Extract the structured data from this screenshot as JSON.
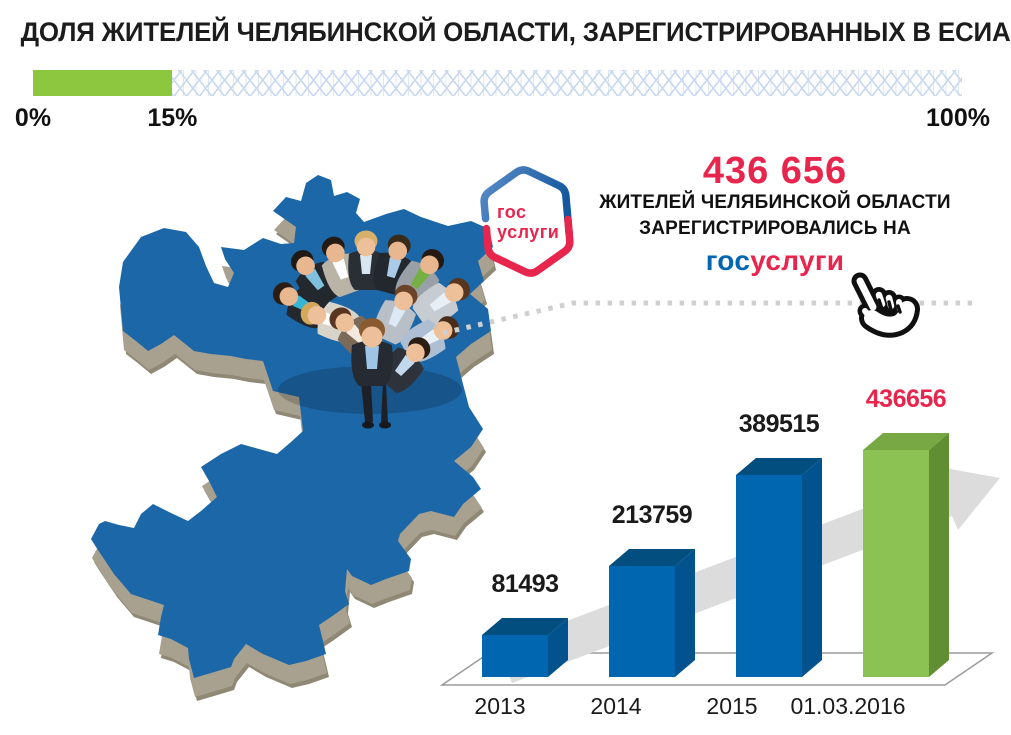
{
  "title": "ДОЛЯ ЖИТЕЛЕЙ ЧЕЛЯБИНСКОЙ ОБЛАСТИ, ЗАРЕГИСТРИРОВАННЫХ В ЕСИА",
  "progress": {
    "percent": 15,
    "min_label": "0%",
    "value_label": "15%",
    "max_label": "100%",
    "fill_color": "#8DC63F",
    "pattern_color": "#C9D8EE"
  },
  "logo": {
    "line1": "гос",
    "line2": "услуги",
    "text_color": "#E8254D",
    "border_top_color": "#2E6CB4",
    "border_bottom_color": "#E8254D"
  },
  "callout": {
    "number": "436 656",
    "number_color": "#E8254D",
    "line1": "ЖИТЕЛЕЙ ЧЕЛЯБИНСКОЙ ОБЛАСТИ",
    "line2": "ЗАРЕГИСТРИРОВАЛИСЬ НА",
    "brand_part1": "гос",
    "brand_part2": "услуги",
    "brand_part1_color": "#0066B3",
    "brand_part2_color": "#E8254D"
  },
  "map": {
    "fill_color": "#1B67A8",
    "side_color": "#A8A190",
    "side_edge_color": "#8F8874",
    "alt": "3D map of Chelyabinsk Oblast with a group of residents standing on it"
  },
  "chart_data": {
    "type": "bar",
    "style": "3d-bars",
    "categories": [
      "2013",
      "2014",
      "2015",
      "01.03.2016"
    ],
    "values": [
      81493,
      213759,
      389515,
      436656
    ],
    "data_labels": [
      "81493",
      "213759",
      "389515",
      "436656"
    ],
    "label_colors": [
      "#1A1A1A",
      "#1A1A1A",
      "#1A1A1A",
      "#E8254D"
    ],
    "bar_face_colors": [
      "#0066B0",
      "#0066B0",
      "#0066B0",
      "#8CC153"
    ],
    "bar_top_colors": [
      "#014E7F",
      "#014E7F",
      "#014E7F",
      "#78A843"
    ],
    "bar_side_colors": [
      "#02528D",
      "#02528D",
      "#02528D",
      "#5F8E33"
    ],
    "highlight_index": 3,
    "ylim": [
      0,
      436656
    ],
    "grid": false,
    "legend": false,
    "axis_label_color": "#1A1A1A",
    "trend_arrow_color": "#DCDCDC",
    "base_plane_color": "#9B9B9B"
  }
}
